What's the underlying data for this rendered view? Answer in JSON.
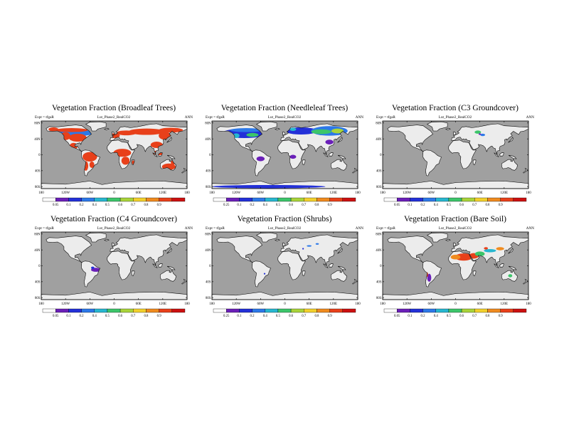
{
  "figure": {
    "expt_label": "Expt = tfgaR",
    "run_label": "Lut_Phase2_RealCO2",
    "period_label": "ANN"
  },
  "axes": {
    "lon_labels": [
      "180",
      "120W",
      "60W",
      "0",
      "60E",
      "120E",
      "180"
    ],
    "lat_labels": [
      "80N",
      "40N",
      "0",
      "40S",
      "80S"
    ]
  },
  "colors": {
    "ocean": "#a0a0a0",
    "land_zero": "#ececec",
    "levels": [
      "#ffffff",
      "#6a1fb8",
      "#2330d8",
      "#2c78e8",
      "#27b7d0",
      "#3cc56a",
      "#a9d43a",
      "#f2d12c",
      "#f08b1f",
      "#e8401a",
      "#cc1010"
    ]
  },
  "colorbars": {
    "lower": [
      "0.05",
      "0.1",
      "0.2",
      "0.4",
      "0.5",
      "0.6",
      "0.7",
      "0.8",
      "0.9"
    ],
    "upper": [
      "0.25",
      "0.1",
      "0.2",
      "0.4",
      "0.5",
      "0.6",
      "0.7",
      "0.8",
      "0.9"
    ]
  },
  "panels": [
    {
      "title": "Vegetation Fraction (Broadleaf Trees)",
      "colorbar": "lower"
    },
    {
      "title": "Vegetation Fraction (Needleleaf Trees)",
      "colorbar": "upper"
    },
    {
      "title": "Vegetation Fraction (C3 Groundcover)",
      "colorbar": "lower"
    },
    {
      "title": "Vegetation Fraction (C4 Groundcover)",
      "colorbar": "lower"
    },
    {
      "title": "Vegetation Fraction (Shrubs)",
      "colorbar": "upper"
    },
    {
      "title": "Vegetation Fraction (Bare Soil)",
      "colorbar": "lower"
    }
  ]
}
